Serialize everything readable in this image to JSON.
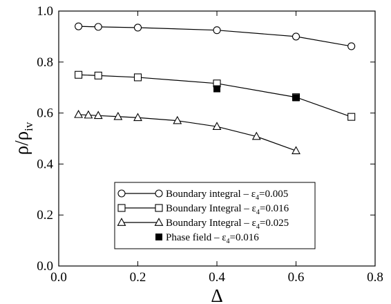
{
  "chart_data": {
    "type": "line",
    "xlabel": "Δ",
    "ylabel": {
      "base": "ρ/ρ",
      "sub": "iv"
    },
    "xlim": [
      0.0,
      0.8
    ],
    "ylim": [
      0.0,
      1.0
    ],
    "xticks": [
      0.0,
      0.2,
      0.4,
      0.6,
      0.8
    ],
    "yticks": [
      0.0,
      0.2,
      0.4,
      0.6,
      0.8,
      1.0
    ],
    "xtick_labels": [
      "0.0",
      "0.2",
      "0.4",
      "0.6",
      "0.8"
    ],
    "ytick_labels": [
      "0.0",
      "0.2",
      "0.4",
      "0.6",
      "0.8",
      "1.0"
    ],
    "grid": false,
    "legend_position": "lower-center",
    "series": [
      {
        "name": "Boundary integral – ε4=0.005",
        "legend_prefix": "Boundary integral – ε",
        "legend_sub": "4",
        "legend_suffix": "=0.005",
        "marker": "circle",
        "line": true,
        "x": [
          0.05,
          0.1,
          0.2,
          0.4,
          0.6,
          0.74
        ],
        "y": [
          0.94,
          0.938,
          0.935,
          0.925,
          0.9,
          0.862
        ]
      },
      {
        "name": "Boundary Integral – ε4=0.016",
        "legend_prefix": "Boundary Integral – ε",
        "legend_sub": "4",
        "legend_suffix": "=0.016",
        "marker": "square",
        "line": true,
        "x": [
          0.05,
          0.1,
          0.2,
          0.4,
          0.6,
          0.74
        ],
        "y": [
          0.75,
          0.747,
          0.74,
          0.716,
          0.662,
          0.585
        ]
      },
      {
        "name": "Boundary Integral – ε4=0.025",
        "legend_prefix": "Boundary Integral – ε",
        "legend_sub": "4",
        "legend_suffix": "=0.025",
        "marker": "triangle",
        "line": true,
        "x": [
          0.05,
          0.075,
          0.1,
          0.15,
          0.2,
          0.3,
          0.4,
          0.5,
          0.6
        ],
        "y": [
          0.594,
          0.592,
          0.59,
          0.586,
          0.582,
          0.57,
          0.547,
          0.508,
          0.452
        ]
      },
      {
        "name": "Phase field – ε4=0.016",
        "legend_prefix": "Phase field – ε",
        "legend_sub": "4",
        "legend_suffix": "=0.016",
        "marker": "filled-square",
        "line": false,
        "x": [
          0.4,
          0.6
        ],
        "y": [
          0.695,
          0.66
        ]
      }
    ]
  }
}
